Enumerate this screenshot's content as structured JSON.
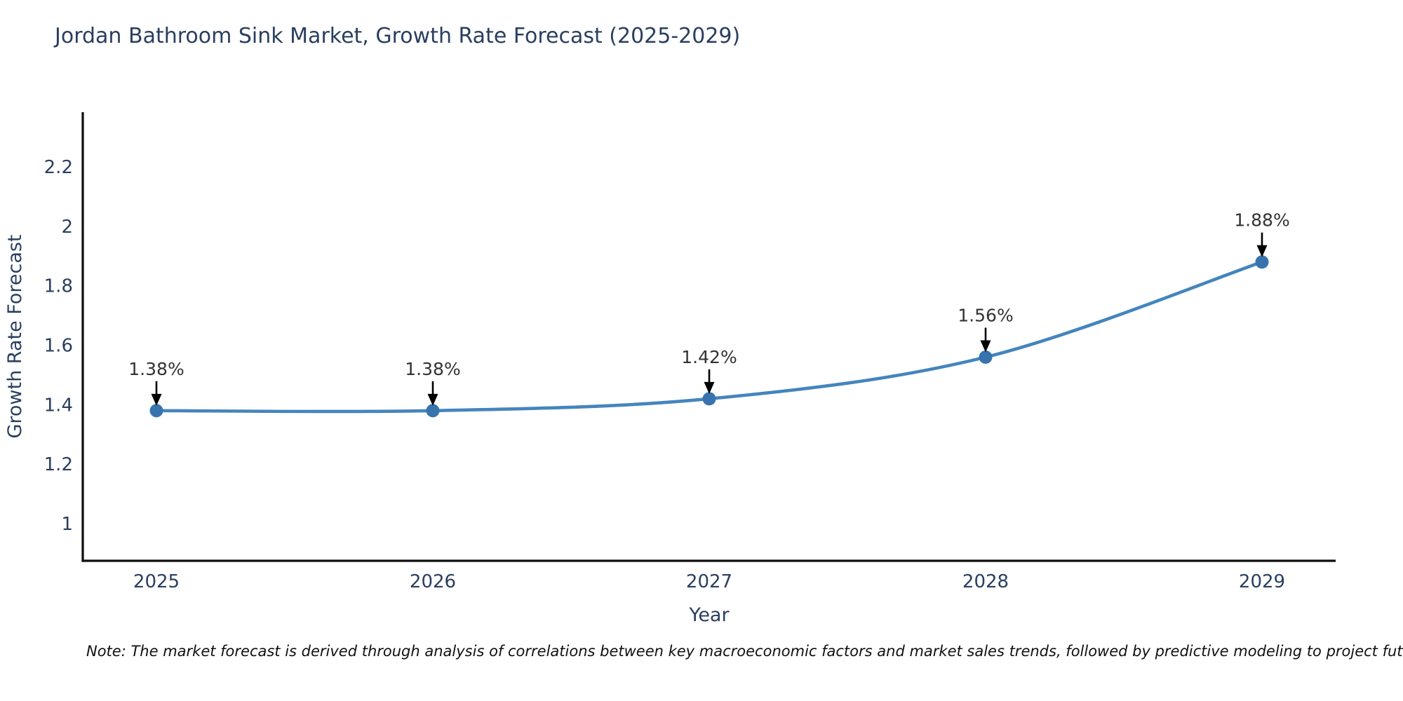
{
  "chart_data": {
    "type": "line",
    "title": "Jordan Bathroom Sink Market, Growth Rate Forecast (2025-2029)",
    "x": [
      "2025",
      "2026",
      "2027",
      "2028",
      "2029"
    ],
    "y": [
      1.38,
      1.38,
      1.42,
      1.56,
      1.88
    ],
    "point_labels": [
      "1.38%",
      "1.38%",
      "1.42%",
      "1.56%",
      "1.88%"
    ],
    "xlabel": "Year",
    "ylabel": "Growth Rate Forecast",
    "yticks": [
      1,
      1.2,
      1.4,
      1.6,
      1.8,
      2,
      2.2
    ],
    "ylim": [
      0.875,
      2.384
    ],
    "grid": false,
    "legend": null,
    "line_color": "#4485bd",
    "marker_color": "#3774ae",
    "axis_color": "#0d0d0d",
    "tick_label_color": "#2a3f5f",
    "annotation_color": "#333333",
    "annotation_arrow_color": "#000000"
  },
  "note": "Note: The market forecast is derived through analysis of correlations between key macroeconomic factors and market sales trends, followed by predictive modeling to project future sales"
}
